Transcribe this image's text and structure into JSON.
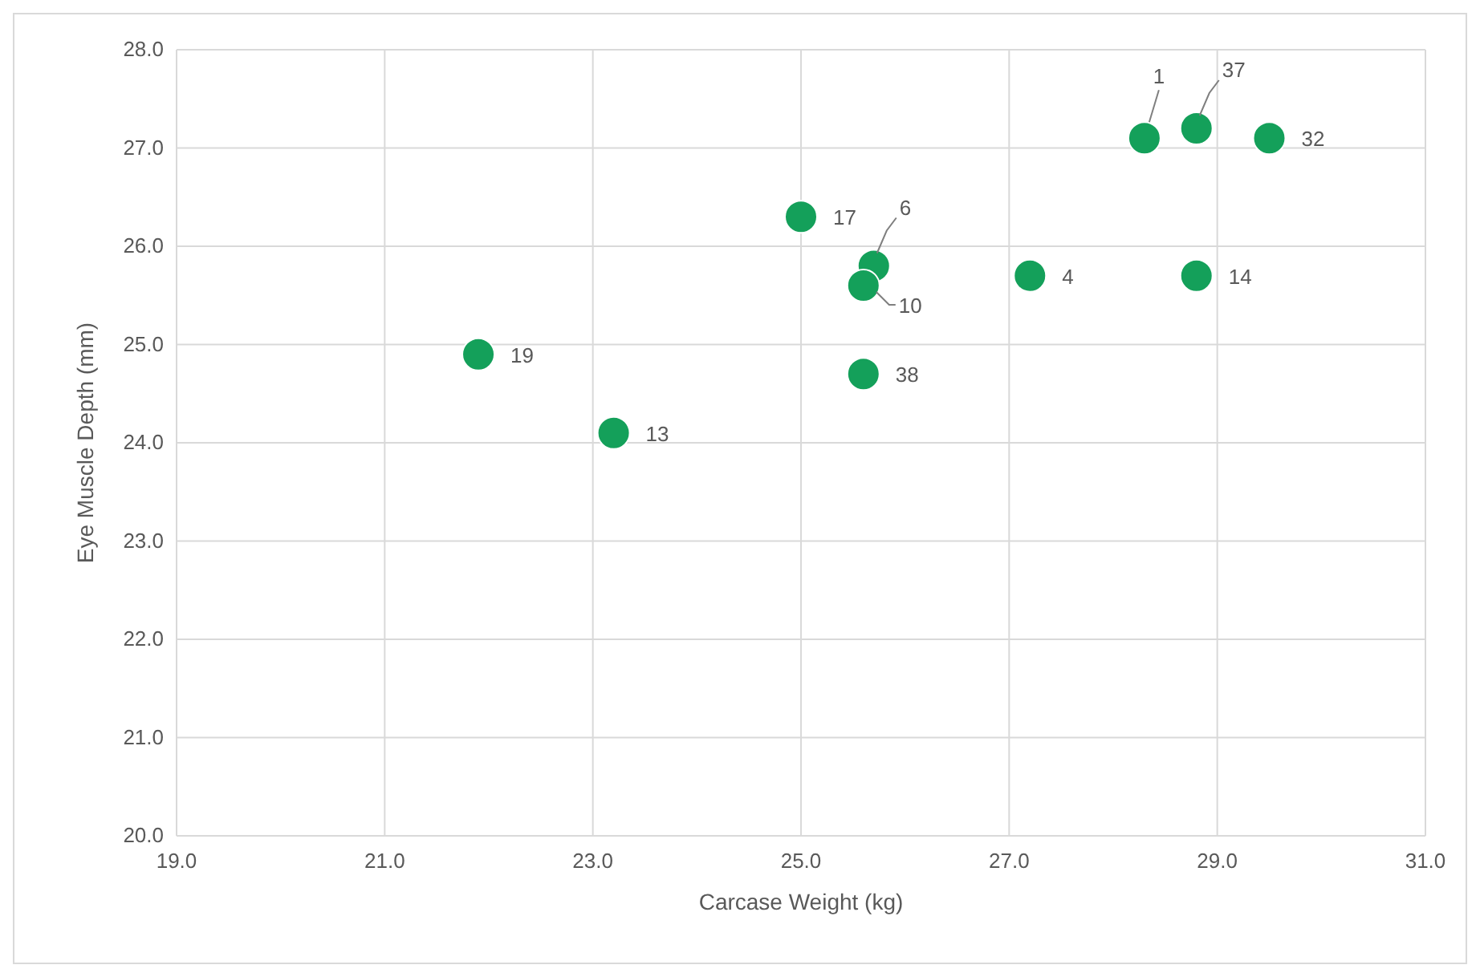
{
  "chart_data": {
    "type": "scatter",
    "xlabel": "Carcase Weight (kg)",
    "ylabel": "Eye Muscle Depth (mm)",
    "x": [
      28.3,
      28.8,
      29.5,
      25.0,
      25.7,
      25.6,
      27.2,
      28.8,
      25.6,
      21.9,
      23.2
    ],
    "values": [
      27.1,
      27.2,
      27.1,
      26.3,
      25.8,
      25.6,
      25.7,
      25.7,
      24.7,
      24.9,
      24.1
    ],
    "color": "#14a05a",
    "marker": "circle",
    "grid": true,
    "xlim": [
      19,
      31
    ],
    "xticks": [
      {
        "value": 19,
        "label": "19.0"
      },
      {
        "value": 21,
        "label": "21.0"
      },
      {
        "value": 23,
        "label": "23.0"
      },
      {
        "value": 25,
        "label": "25.0"
      },
      {
        "value": 27,
        "label": "27.0"
      },
      {
        "value": 29,
        "label": "29.0"
      },
      {
        "value": 31,
        "label": "31.0"
      }
    ],
    "ylim": [
      20,
      28
    ],
    "yticks": [
      {
        "value": 20,
        "label": "20.0"
      },
      {
        "value": 21,
        "label": "21.0"
      },
      {
        "value": 22,
        "label": "22.0"
      },
      {
        "value": 23,
        "label": "23.0"
      },
      {
        "value": 24,
        "label": "24.0"
      },
      {
        "value": 25,
        "label": "25.0"
      },
      {
        "value": 26,
        "label": "26.0"
      },
      {
        "value": 27,
        "label": "27.0"
      },
      {
        "value": 28,
        "label": "28.0"
      }
    ],
    "annotations": [
      {
        "text": "1",
        "x": 28.3,
        "y": 27.1
      },
      {
        "text": "37",
        "x": 28.8,
        "y": 27.2
      },
      {
        "text": "32",
        "x": 29.5,
        "y": 27.1
      },
      {
        "text": "17",
        "x": 25.0,
        "y": 26.3
      },
      {
        "text": "6",
        "x": 25.7,
        "y": 25.8
      },
      {
        "text": "10",
        "x": 25.6,
        "y": 25.6
      },
      {
        "text": "4",
        "x": 27.2,
        "y": 25.7
      },
      {
        "text": "14",
        "x": 28.8,
        "y": 25.7
      },
      {
        "text": "38",
        "x": 25.6,
        "y": 24.7
      },
      {
        "text": "19",
        "x": 21.9,
        "y": 24.9
      },
      {
        "text": "13",
        "x": 23.2,
        "y": 24.1
      }
    ]
  }
}
